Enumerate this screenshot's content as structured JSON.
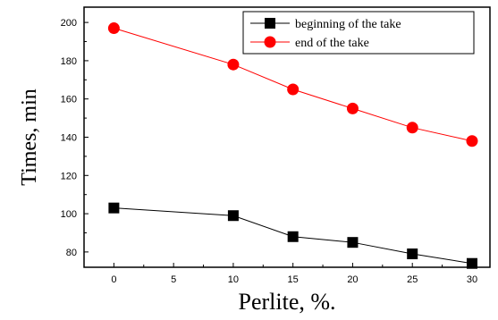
{
  "chart_data": {
    "type": "line",
    "xlabel": "Perlite,  %.",
    "ylabel": "Times, min",
    "xlim": [
      -2.5,
      31.5
    ],
    "ylim": [
      72,
      208
    ],
    "x_ticks": [
      0,
      5,
      10,
      15,
      20,
      25,
      30
    ],
    "y_ticks": [
      80,
      100,
      120,
      140,
      160,
      180,
      200
    ],
    "grid": false,
    "legend_position": "top-right",
    "series": [
      {
        "name": "beginning of the take",
        "color": "#000000",
        "marker": "square",
        "x": [
          0,
          10,
          15,
          20,
          25,
          30
        ],
        "y": [
          103,
          99,
          88,
          85,
          79,
          74
        ]
      },
      {
        "name": "end of the take",
        "color": "#ff0000",
        "marker": "circle",
        "x": [
          0,
          10,
          15,
          20,
          25,
          30
        ],
        "y": [
          197,
          178,
          165,
          155,
          145,
          138
        ]
      }
    ]
  }
}
